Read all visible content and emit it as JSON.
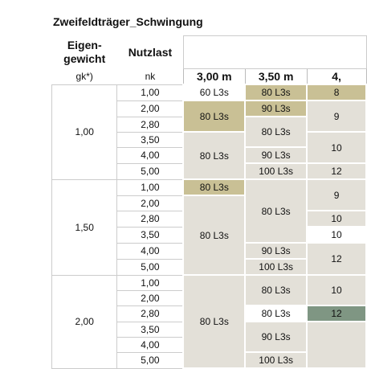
{
  "title": "Zweifeldträger_Schwingung",
  "table": {
    "head": {
      "eigengewicht": "Eigen-\ngewicht",
      "nutzlast": "Nutzlast",
      "gk": "gk*)",
      "nk": "nk"
    },
    "groups": [
      {
        "gk": "1,00",
        "nk": [
          "1,00",
          "2,00",
          "2,80",
          "3,50",
          "4,00",
          "5,00"
        ]
      },
      {
        "gk": "1,50",
        "nk": [
          "1,00",
          "2,00",
          "2,80",
          "3,50",
          "4,00",
          "5,00"
        ]
      },
      {
        "gk": "2,00",
        "nk": [
          "1,00",
          "2,00",
          "2,80",
          "3,50",
          "4,00",
          "5,00"
        ]
      }
    ],
    "columns": [
      {
        "header": "3,00 m",
        "cells": [
          {
            "text": "60 L3s",
            "rows": 1,
            "color": "#ffffff"
          },
          {
            "text": "80 L3s",
            "rows": 2,
            "color": "#c9c095"
          },
          {
            "text": "80 L3s",
            "rows": 3,
            "color": "#e3e0d8"
          },
          {
            "text": "80 L3s",
            "rows": 1,
            "color": "#c9c095"
          },
          {
            "text": "80 L3s",
            "rows": 5,
            "color": "#e3e0d8"
          },
          {
            "text": "80 L3s",
            "rows": 6,
            "color": "#e3e0d8"
          }
        ]
      },
      {
        "header": "3,50 m",
        "cells": [
          {
            "text": "80 L3s",
            "rows": 1,
            "color": "#c9c095"
          },
          {
            "text": "90 L3s",
            "rows": 1,
            "color": "#c9c095"
          },
          {
            "text": "80 L3s",
            "rows": 2,
            "color": "#e3e0d8"
          },
          {
            "text": "90 L3s",
            "rows": 1,
            "color": "#e3e0d8"
          },
          {
            "text": "100 L3s",
            "rows": 1,
            "color": "#e3e0d8"
          },
          {
            "text": "80 L3s",
            "rows": 4,
            "color": "#e3e0d8"
          },
          {
            "text": "90 L3s",
            "rows": 1,
            "color": "#e3e0d8"
          },
          {
            "text": "100 L3s",
            "rows": 1,
            "color": "#e3e0d8"
          },
          {
            "text": "80 L3s",
            "rows": 2,
            "color": "#e3e0d8"
          },
          {
            "text": "80 L3s",
            "rows": 1,
            "color": "#ffffff"
          },
          {
            "text": "90 L3s",
            "rows": 2,
            "color": "#e3e0d8"
          },
          {
            "text": "100 L3s",
            "rows": 1,
            "color": "#e3e0d8"
          }
        ]
      },
      {
        "header": "4,",
        "cells": [
          {
            "text": "8",
            "rows": 1,
            "color": "#c9c095"
          },
          {
            "text": "9",
            "rows": 2,
            "color": "#e3e0d8"
          },
          {
            "text": "10",
            "rows": 2,
            "color": "#e3e0d8"
          },
          {
            "text": "12",
            "rows": 1,
            "color": "#e3e0d8"
          },
          {
            "text": "9",
            "rows": 2,
            "color": "#e3e0d8"
          },
          {
            "text": "10",
            "rows": 1,
            "color": "#e3e0d8"
          },
          {
            "text": "10",
            "rows": 1,
            "color": "#ffffff"
          },
          {
            "text": "12",
            "rows": 2,
            "color": "#e3e0d8"
          },
          {
            "text": "10",
            "rows": 2,
            "color": "#e3e0d8"
          },
          {
            "text": "12",
            "rows": 1,
            "color": "#7f9683"
          },
          {
            "rows": 3,
            "color": "#e3e0d8"
          }
        ]
      }
    ]
  }
}
